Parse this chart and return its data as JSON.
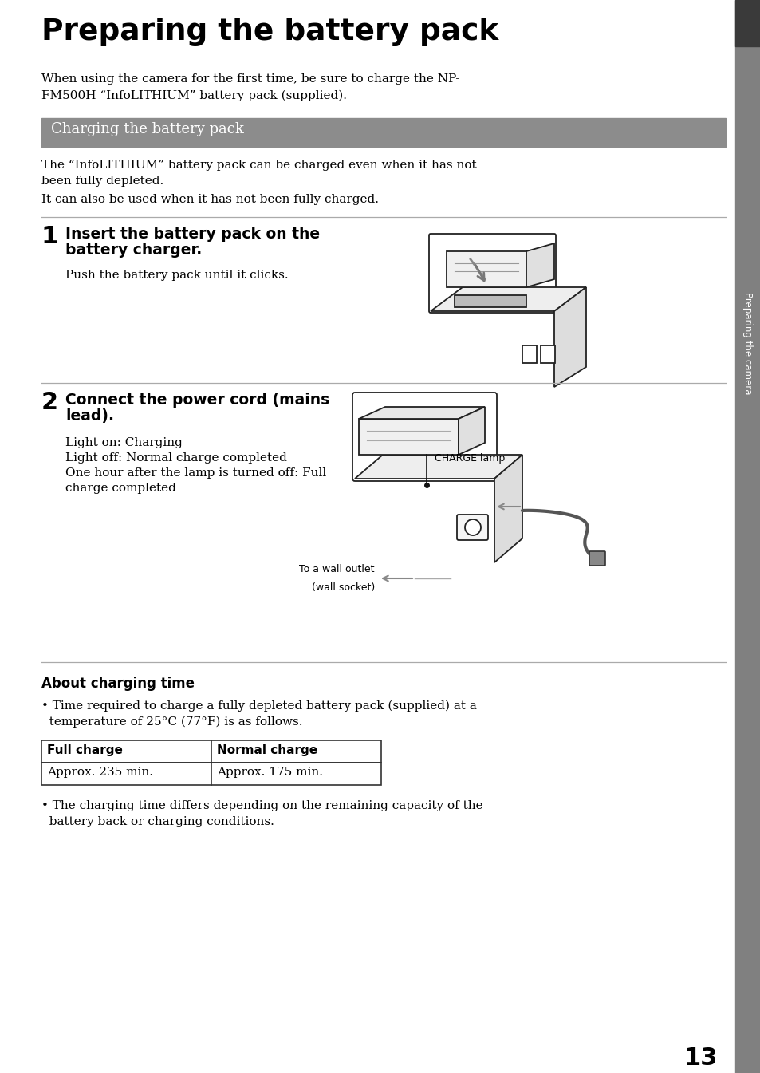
{
  "title": "Preparing the battery pack",
  "intro_line1": "When using the camera for the first time, be sure to charge the NP-",
  "intro_line2": "FM500H “InfoLITHIUM” battery pack (supplied).",
  "section_header": "Charging the battery pack",
  "section_header_bg": "#8c8c8c",
  "section_body_line1": "The “InfoLITHIUM” battery pack can be charged even when it has not",
  "section_body_line2": "been fully depleted.",
  "section_body_line3": "It can also be used when it has not been fully charged.",
  "step1_num": "1",
  "step1_title_line1": "Insert the battery pack on the",
  "step1_title_line2": "battery charger.",
  "step1_body": "Push the battery pack until it clicks.",
  "step2_num": "2",
  "step2_title_line1": "Connect the power cord (mains",
  "step2_title_line2": "lead).",
  "step2_body_line1": "Light on: Charging",
  "step2_body_line2": "Light off: Normal charge completed",
  "step2_body_line3": "One hour after the lamp is turned off: Full",
  "step2_body_line4": "charge completed",
  "charge_lamp_label": "CHARGE lamp",
  "wall_outlet_line1": "To a wall outlet",
  "wall_outlet_line2": "(wall socket)",
  "about_title": "About charging time",
  "bullet1_line1": "• Time required to charge a fully depleted battery pack (supplied) at a",
  "bullet1_line2": "  temperature of 25°C (77°F) is as follows.",
  "table_headers": [
    "Full charge",
    "Normal charge"
  ],
  "table_values": [
    "Approx. 235 min.",
    "Approx. 175 min."
  ],
  "bullet2_line1": "• The charging time differs depending on the remaining capacity of the",
  "bullet2_line2": "  battery back or charging conditions.",
  "page_number": "13",
  "sidebar_text": "Preparing the camera",
  "sidebar_bg": "#808080",
  "sidebar_dark_bg": "#3a3a3a",
  "bg_color": "#ffffff",
  "text_color": "#000000",
  "divider_color": "#aaaaaa",
  "line_color": "#333333"
}
